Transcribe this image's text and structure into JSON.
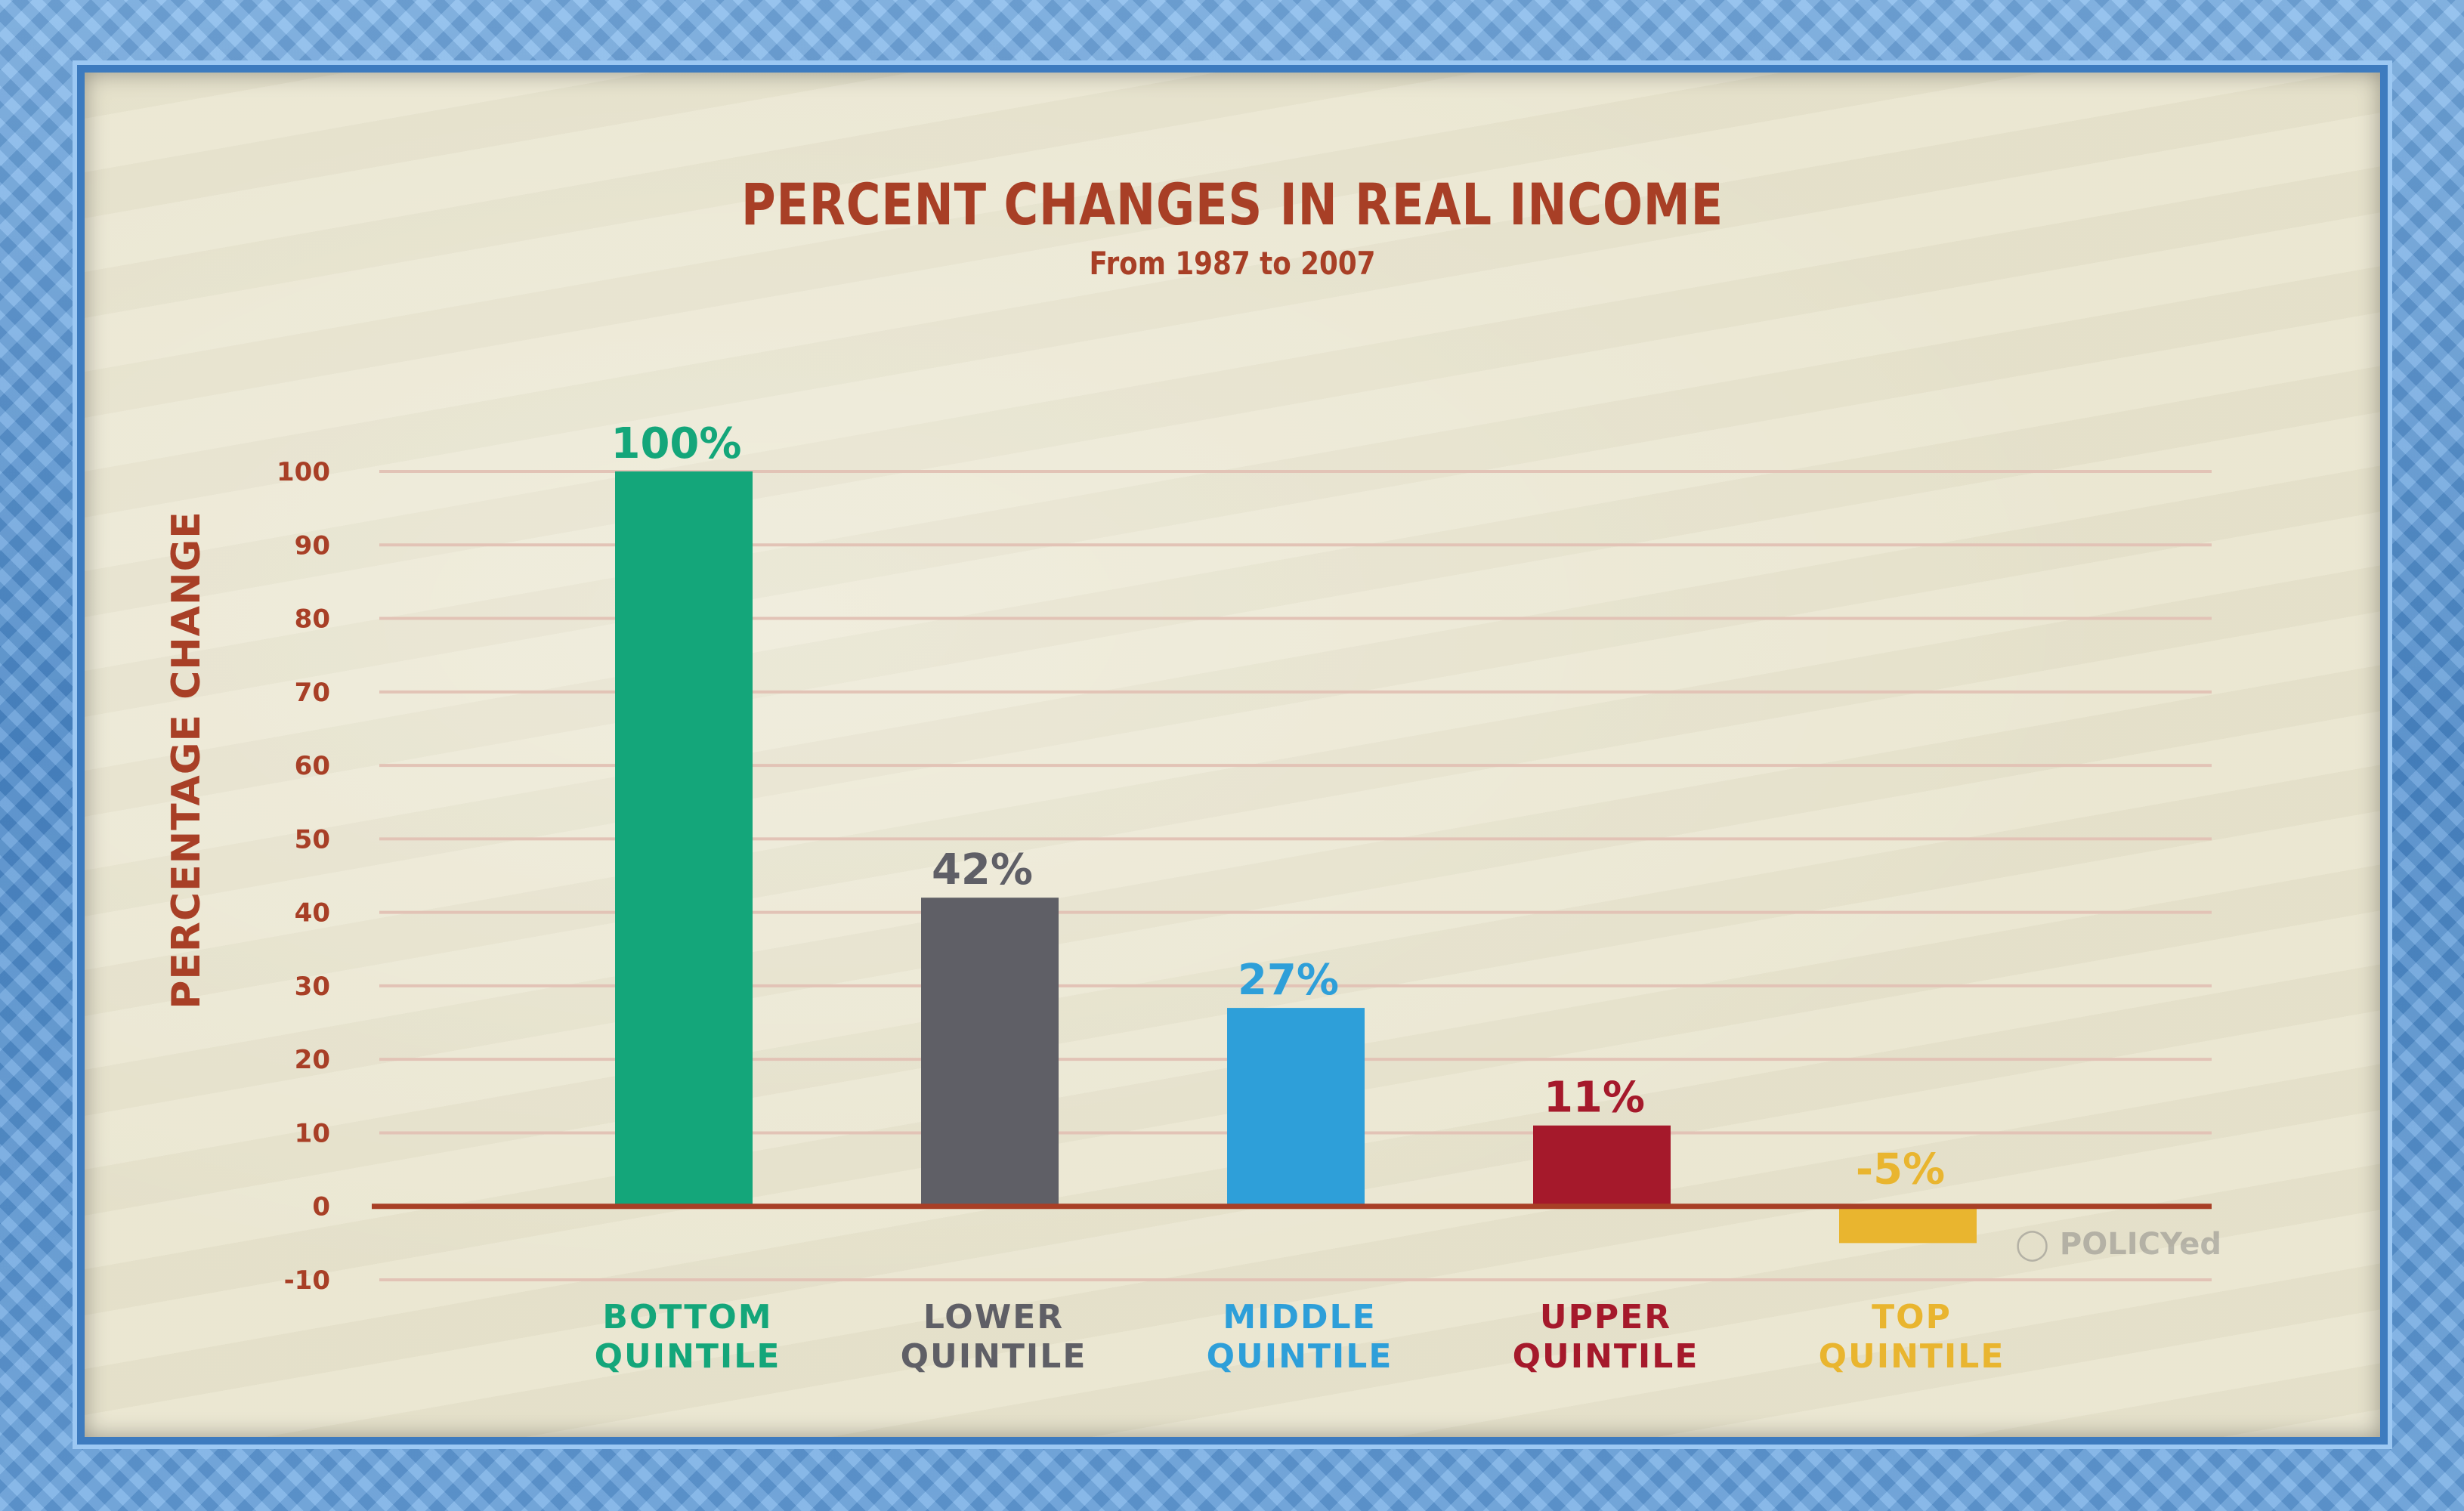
{
  "chart_data": {
    "type": "bar",
    "title": "PERCENT CHANGES IN REAL INCOME",
    "subtitle": "From 1987 to 2007",
    "ylabel": "PERCENTAGE CHANGE",
    "xlabel": "",
    "ylim": [
      -10,
      100
    ],
    "yticks": [
      100,
      90,
      80,
      70,
      60,
      50,
      40,
      30,
      20,
      10,
      0,
      -10
    ],
    "grid": true,
    "categories": [
      [
        "BOTTOM",
        "QUINTILE"
      ],
      [
        "LOWER",
        "QUINTILE"
      ],
      [
        "MIDDLE",
        "QUINTILE"
      ],
      [
        "UPPER",
        "QUINTILE"
      ],
      [
        "TOP",
        "QUINTILE"
      ]
    ],
    "values": [
      100,
      42,
      27,
      11,
      -5
    ],
    "value_labels": [
      "100%",
      "42%",
      "27%",
      "11%",
      "-5%"
    ],
    "colors": [
      "#14a67a",
      "#5f5f66",
      "#2e9fd9",
      "#a5192b",
      "#e9b52f"
    ]
  },
  "colors": {
    "title": "#a83f26",
    "grid": "#e2c3b6",
    "axis": "#a83f26"
  },
  "logo": {
    "text": "POLICYed",
    "icon": "lightbulb-icon"
  }
}
